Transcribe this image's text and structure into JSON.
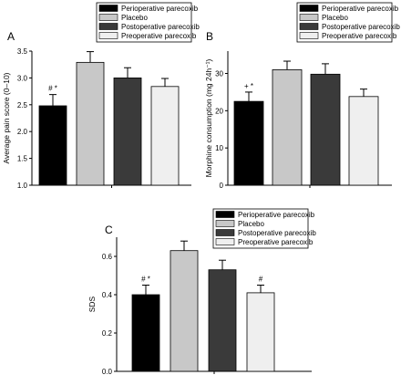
{
  "legend_items": [
    "Perioperative parecoxib",
    "Placebo",
    "Postoperative parecoxib",
    "Preoperative parecoxib"
  ],
  "colors": [
    "#000000",
    "#c8c8c8",
    "#3a3a3a",
    "#efefef"
  ],
  "chart_data": [
    {
      "type": "bar",
      "panel": "A",
      "title": "",
      "xlabel": "",
      "ylabel": "Average pain score (0–10)",
      "ylim": [
        1.0,
        3.5
      ],
      "yticks": [
        "1.0",
        "1.5",
        "2.0",
        "2.5",
        "3.0",
        "3.5"
      ],
      "categories": [
        "Perioperative parecoxib",
        "Placebo",
        "Postoperative parecoxib",
        "Preoperative parecoxib"
      ],
      "values": [
        2.48,
        3.29,
        3.0,
        2.84
      ],
      "errors": [
        0.21,
        0.2,
        0.19,
        0.15
      ],
      "annotations": [
        "# *",
        "",
        "",
        ""
      ],
      "legend_position": "top-right",
      "grid": false
    },
    {
      "type": "bar",
      "panel": "B",
      "title": "",
      "xlabel": "",
      "ylabel": "Morphine consumption (mg 24h⁻¹)",
      "ylim": [
        0,
        36
      ],
      "yticks": [
        "0",
        "10",
        "20",
        "30"
      ],
      "categories": [
        "Perioperative parecoxib",
        "Placebo",
        "Postoperative parecoxib",
        "Preoperative parecoxib"
      ],
      "values": [
        22.5,
        31.0,
        29.8,
        23.8
      ],
      "errors": [
        2.5,
        2.3,
        2.8,
        2.0
      ],
      "annotations": [
        "+ *",
        "",
        "",
        ""
      ],
      "legend_position": "top-right",
      "grid": false
    },
    {
      "type": "bar",
      "panel": "C",
      "title": "",
      "xlabel": "",
      "ylabel": "SDS",
      "ylim": [
        0.0,
        0.7
      ],
      "yticks": [
        "0.0",
        "0.2",
        "0.4",
        "0.6"
      ],
      "categories": [
        "Perioperative parecoxib",
        "Placebo",
        "Postoperative parecoxib",
        "Preoperative parecoxib"
      ],
      "values": [
        0.4,
        0.63,
        0.53,
        0.41
      ],
      "errors": [
        0.05,
        0.05,
        0.05,
        0.04
      ],
      "annotations": [
        "# *",
        "",
        "",
        "#"
      ],
      "legend_position": "top-right",
      "grid": false
    }
  ]
}
